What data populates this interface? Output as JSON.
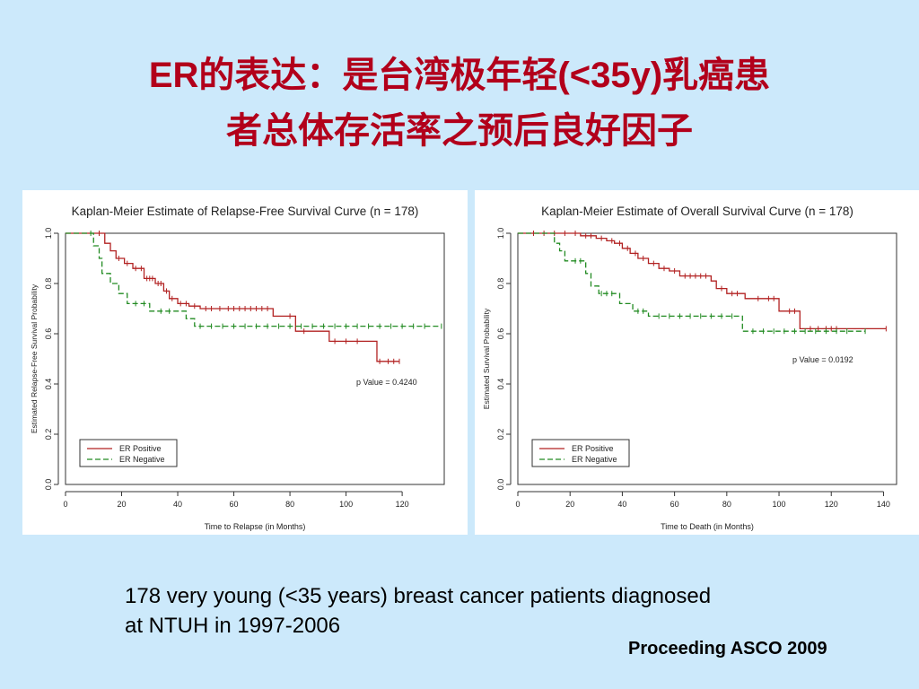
{
  "slide": {
    "title_line1": "ER的表达：是台湾极年轻(<35y)乳癌患",
    "title_line2": "者总体存活率之预后良好因子",
    "caption_line1": "178 very young (<35 years) breast cancer patients diagnosed",
    "caption_line2": "at NTUH in 1997-2006",
    "source": "Proceeding ASCO 2009"
  },
  "colors": {
    "background": "#cce9fb",
    "title": "#b2001b",
    "er_positive": "#b22222",
    "er_negative": "#228b22"
  },
  "chart_data": [
    {
      "type": "line",
      "title": "Kaplan-Meier Estimate of Relapse-Free Survival Curve (n = 178)",
      "xlabel": "Time to Relapse (in Months)",
      "ylabel": "Estimated Relapse-Free Survival Probability",
      "xlim": [
        0,
        135
      ],
      "ylim": [
        0,
        1
      ],
      "xticks": [
        0,
        20,
        40,
        60,
        80,
        100,
        120
      ],
      "yticks": [
        0.0,
        0.2,
        0.4,
        0.6,
        0.8,
        1.0
      ],
      "annotation": "p Value = 0.4240",
      "legend_position": "bottom-left",
      "grid": false,
      "step": true,
      "series": [
        {
          "name": "ER Positive",
          "color": "#b22222",
          "dash": false,
          "points": [
            [
              0,
              1.0
            ],
            [
              10,
              1.0
            ],
            [
              14,
              0.96
            ],
            [
              16,
              0.93
            ],
            [
              18,
              0.9
            ],
            [
              21,
              0.88
            ],
            [
              24,
              0.86
            ],
            [
              28,
              0.82
            ],
            [
              32,
              0.8
            ],
            [
              35,
              0.77
            ],
            [
              37,
              0.74
            ],
            [
              40,
              0.72
            ],
            [
              44,
              0.71
            ],
            [
              48,
              0.7
            ],
            [
              74,
              0.67
            ],
            [
              82,
              0.61
            ],
            [
              94,
              0.57
            ],
            [
              111,
              0.49
            ],
            [
              119,
              0.49
            ]
          ],
          "censor_x": [
            12,
            19,
            22,
            25,
            27,
            29,
            30,
            31,
            33,
            34,
            36,
            38,
            41,
            43,
            46,
            50,
            52,
            55,
            58,
            60,
            62,
            64,
            66,
            68,
            70,
            72,
            80,
            85,
            96,
            100,
            104,
            112,
            115,
            117,
            119
          ]
        },
        {
          "name": "ER Negative",
          "color": "#228b22",
          "dash": true,
          "points": [
            [
              0,
              1.0
            ],
            [
              8,
              1.0
            ],
            [
              10,
              0.95
            ],
            [
              12,
              0.9
            ],
            [
              13,
              0.84
            ],
            [
              16,
              0.8
            ],
            [
              19,
              0.76
            ],
            [
              22,
              0.72
            ],
            [
              30,
              0.69
            ],
            [
              43,
              0.66
            ],
            [
              46,
              0.63
            ],
            [
              134,
              0.63
            ]
          ],
          "censor_x": [
            9,
            25,
            28,
            34,
            37,
            48,
            52,
            56,
            60,
            64,
            68,
            72,
            76,
            80,
            84,
            88,
            92,
            96,
            100,
            104,
            108,
            112,
            116,
            120,
            124,
            128,
            134
          ]
        }
      ]
    },
    {
      "type": "line",
      "title": "Kaplan-Meier Estimate of Overall Survival Curve (n = 178)",
      "xlabel": "Time to Death (in Months)",
      "ylabel": "Estimated Survival Probability",
      "xlim": [
        0,
        145
      ],
      "ylim": [
        0,
        1
      ],
      "xticks": [
        0,
        20,
        40,
        60,
        80,
        100,
        120,
        140
      ],
      "yticks": [
        0.0,
        0.2,
        0.4,
        0.6,
        0.8,
        1.0
      ],
      "annotation": "p Value = 0.0192",
      "legend_position": "bottom-left",
      "grid": false,
      "step": true,
      "series": [
        {
          "name": "ER Positive",
          "color": "#b22222",
          "dash": false,
          "points": [
            [
              0,
              1.0
            ],
            [
              19,
              1.0
            ],
            [
              24,
              0.99
            ],
            [
              30,
              0.98
            ],
            [
              34,
              0.97
            ],
            [
              37,
              0.96
            ],
            [
              40,
              0.94
            ],
            [
              43,
              0.92
            ],
            [
              46,
              0.9
            ],
            [
              50,
              0.88
            ],
            [
              54,
              0.86
            ],
            [
              58,
              0.85
            ],
            [
              62,
              0.83
            ],
            [
              74,
              0.81
            ],
            [
              76,
              0.78
            ],
            [
              80,
              0.76
            ],
            [
              87,
              0.74
            ],
            [
              100,
              0.69
            ],
            [
              108,
              0.62
            ],
            [
              141,
              0.62
            ]
          ],
          "censor_x": [
            6,
            10,
            14,
            18,
            22,
            26,
            28,
            32,
            36,
            39,
            42,
            45,
            48,
            52,
            56,
            60,
            64,
            66,
            68,
            70,
            72,
            78,
            82,
            84,
            92,
            96,
            98,
            104,
            106,
            112,
            115,
            118,
            120,
            122,
            141
          ]
        },
        {
          "name": "ER Negative",
          "color": "#228b22",
          "dash": true,
          "points": [
            [
              0,
              1.0
            ],
            [
              11,
              1.0
            ],
            [
              14,
              0.96
            ],
            [
              16,
              0.93
            ],
            [
              18,
              0.89
            ],
            [
              26,
              0.84
            ],
            [
              28,
              0.79
            ],
            [
              31,
              0.76
            ],
            [
              39,
              0.72
            ],
            [
              44,
              0.69
            ],
            [
              50,
              0.67
            ],
            [
              86,
              0.61
            ],
            [
              133,
              0.61
            ]
          ],
          "censor_x": [
            22,
            24,
            32,
            34,
            36,
            46,
            48,
            54,
            58,
            62,
            66,
            70,
            74,
            78,
            82,
            90,
            94,
            98,
            102,
            106,
            110,
            114,
            118,
            122,
            126,
            133
          ]
        }
      ]
    }
  ]
}
